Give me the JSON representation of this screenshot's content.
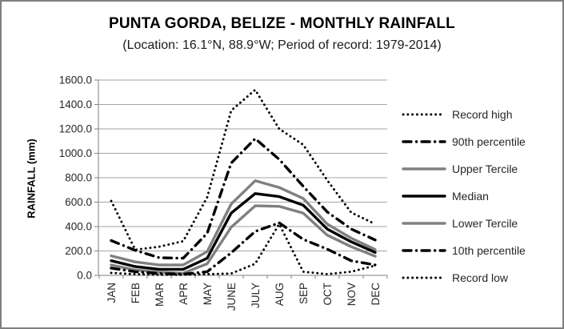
{
  "header": {
    "title": "PUNTA GORDA, BELIZE - MONTHLY RAINFALL",
    "subtitle": "(Location: 16.1°N, 88.9°W; Period of record: 1979-2014)"
  },
  "axes": {
    "y_label": "RAINFALL (mm)",
    "y_tick_labels": [
      "0.0",
      "200.0",
      "400.0",
      "600.0",
      "800.0",
      "1000.0",
      "1200.0",
      "1400.0",
      "1600.0"
    ],
    "x_tick_labels": [
      "JAN",
      "FEB",
      "MAR",
      "APR",
      "MAY",
      "JUNE",
      "JULY",
      "AUG",
      "SEP",
      "OCT",
      "NOV",
      "DEC"
    ]
  },
  "colors": {
    "black": "#000000",
    "gray_series": "#808080",
    "gridline": "#a6a6a6",
    "axis": "#808080",
    "tick_text": "#262626"
  },
  "chart_data": {
    "type": "line",
    "title": "PUNTA GORDA, BELIZE - MONTHLY RAINFALL",
    "subtitle": "(Location: 16.1°N, 88.9°W; Period of record: 1979-2014)",
    "xlabel": "",
    "ylabel": "RAINFALL (mm)",
    "ylim": [
      0,
      1600
    ],
    "y_step": 200,
    "grid": true,
    "legend_position": "right",
    "categories": [
      "JAN",
      "FEB",
      "MAR",
      "APR",
      "MAY",
      "JUNE",
      "JULY",
      "AUG",
      "SEP",
      "OCT",
      "NOV",
      "DEC"
    ],
    "series": [
      {
        "name": "Record high",
        "style": "dotted",
        "color": "#000000",
        "values": [
          610,
          210,
          235,
          280,
          640,
          1350,
          1520,
          1200,
          1070,
          780,
          515,
          420
        ]
      },
      {
        "name": "90th percentile",
        "style": "dashdot",
        "color": "#000000",
        "values": [
          285,
          205,
          145,
          140,
          345,
          920,
          1120,
          950,
          730,
          520,
          380,
          290
        ]
      },
      {
        "name": "Upper Tercile",
        "style": "solid",
        "color": "#808080",
        "values": [
          160,
          110,
          85,
          85,
          195,
          585,
          775,
          720,
          630,
          420,
          305,
          212
        ]
      },
      {
        "name": "Median",
        "style": "solid",
        "color": "#000000",
        "values": [
          120,
          72,
          50,
          50,
          140,
          510,
          670,
          645,
          575,
          380,
          275,
          188
        ]
      },
      {
        "name": "Lower Tercile",
        "style": "solid",
        "color": "#808080",
        "values": [
          85,
          44,
          26,
          18,
          95,
          395,
          570,
          565,
          510,
          330,
          235,
          157
        ]
      },
      {
        "name": "10th percentile",
        "style": "dashdot",
        "color": "#000000",
        "values": [
          60,
          30,
          15,
          10,
          30,
          185,
          360,
          430,
          295,
          215,
          120,
          85
        ]
      },
      {
        "name": "Record low",
        "style": "dotted",
        "color": "#000000",
        "values": [
          20,
          10,
          5,
          5,
          10,
          15,
          95,
          420,
          30,
          10,
          30,
          80
        ]
      }
    ]
  }
}
